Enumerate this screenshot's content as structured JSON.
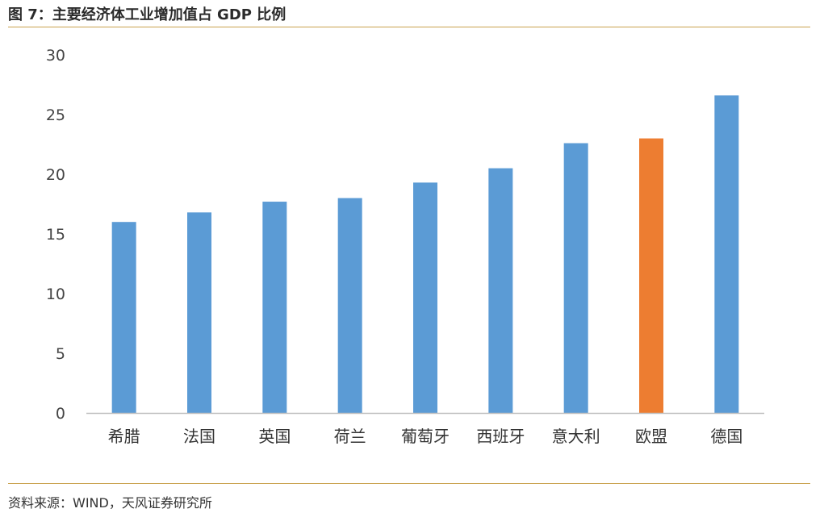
{
  "title": "图 7：主要经济体工业增加值占 GDP 比例",
  "source": "资料来源：WIND，天风证券研究所",
  "chart_data": {
    "type": "bar",
    "title": "",
    "xlabel": "",
    "ylabel": "",
    "categories": [
      "希腊",
      "法国",
      "英国",
      "荷兰",
      "葡萄牙",
      "西班牙",
      "意大利",
      "欧盟",
      "德国"
    ],
    "values": [
      16.0,
      16.8,
      17.7,
      18.0,
      19.3,
      20.5,
      22.6,
      23.0,
      26.6
    ],
    "highlight_index": 7,
    "colors": {
      "default": "#5b9bd5",
      "highlight": "#ed7d31",
      "axis": "#bfbfbf"
    },
    "ylim": [
      0,
      30
    ],
    "yticks": [
      0,
      5,
      10,
      15,
      20,
      25,
      30
    ],
    "grid": false,
    "legend": "none"
  }
}
